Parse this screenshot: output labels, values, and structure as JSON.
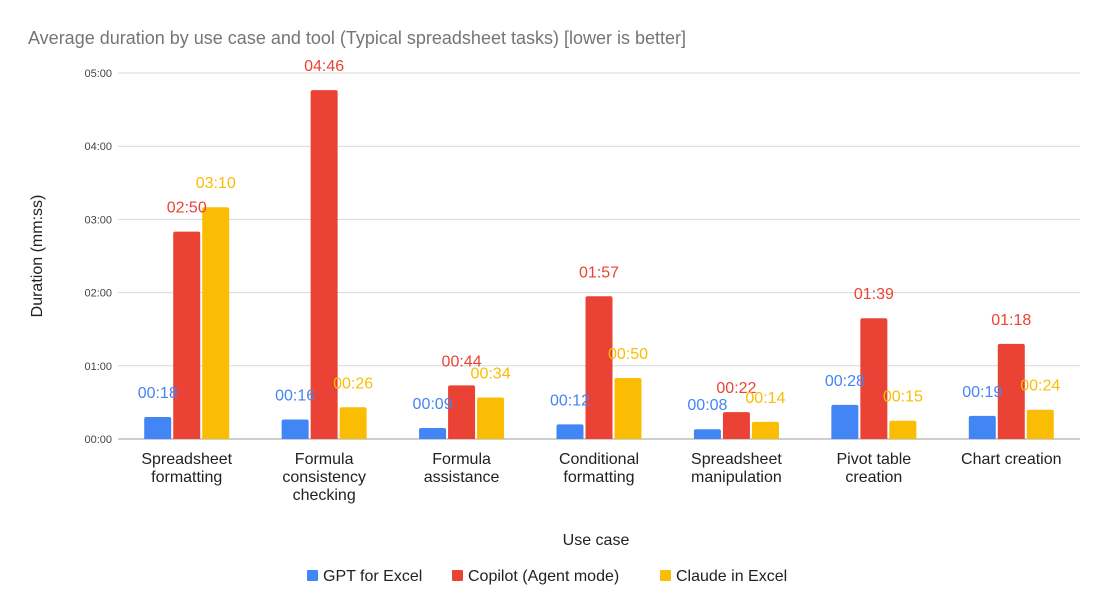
{
  "chart_data": {
    "type": "bar",
    "title": "Average duration by use case and tool (Typical spreadsheet tasks) [lower is better]",
    "xlabel": "Use case",
    "ylabel": "Duration (mm:ss)",
    "ylim": [
      "00:00",
      "05:00"
    ],
    "yticks": [
      "00:00",
      "01:00",
      "02:00",
      "03:00",
      "04:00",
      "05:00"
    ],
    "grid": true,
    "legend_position": "bottom",
    "categories": [
      [
        "Spreadsheet",
        "formatting"
      ],
      [
        "Formula",
        "consistency",
        "checking"
      ],
      [
        "Formula",
        "assistance"
      ],
      [
        "Conditional",
        "formatting"
      ],
      [
        "Spreadsheet",
        "manipulation"
      ],
      [
        "Pivot table",
        "creation"
      ],
      [
        "Chart creation"
      ]
    ],
    "series": [
      {
        "name": "GPT for Excel",
        "color": "#4285F4",
        "values": [
          "00:18",
          "00:16",
          "00:09",
          "00:12",
          "00:08",
          "00:28",
          "00:19"
        ]
      },
      {
        "name": "Copilot (Agent mode)",
        "color": "#EA4335",
        "values": [
          "02:50",
          "04:46",
          "00:44",
          "01:57",
          "00:22",
          "01:39",
          "01:18"
        ]
      },
      {
        "name": "Claude in Excel",
        "color": "#FBBC04",
        "values": [
          "03:10",
          "00:26",
          "00:34",
          "00:50",
          "00:14",
          "00:15",
          "00:24"
        ]
      }
    ]
  }
}
